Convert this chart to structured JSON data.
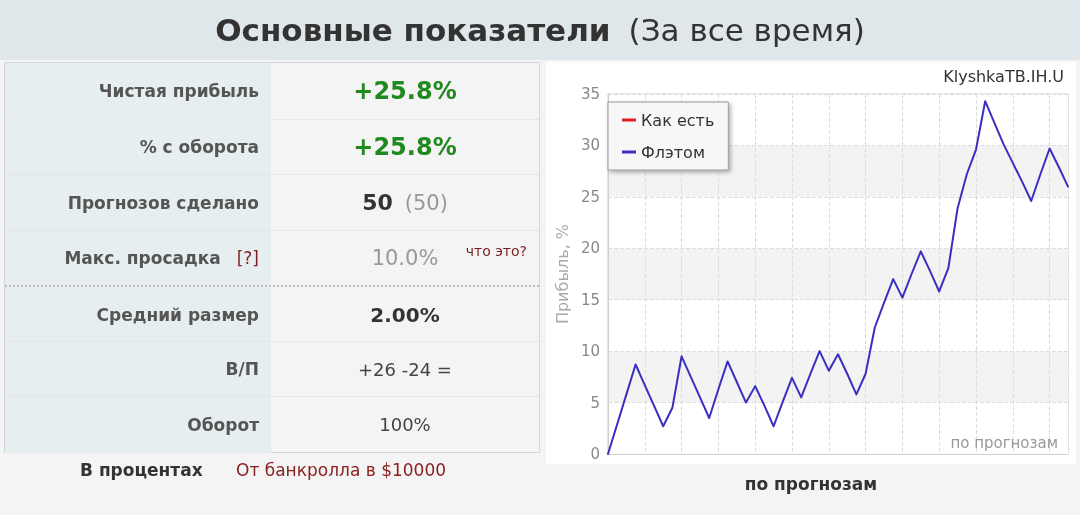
{
  "chart_data": [
    {
      "type": "other",
      "title": "Основные показатели",
      "subtitle": "(За все время)",
      "annotations": [
        "Чистая прибыль",
        "+25.8%",
        "% с оборота",
        "+25.8%",
        "Прогнозов сделано",
        "50",
        "Макс. просадка",
        "10.0%",
        "Средний размер",
        "2.00%",
        "В/П",
        "+26 -24 =",
        "Оборот",
        "100%",
        "(50)",
        "[?]",
        "что это?",
        "В процентах",
        "От банкролла в $10000"
      ]
    },
    {
      "type": "line",
      "xlabel": "по прогнозам",
      "ylabel": "Прибыль, %",
      "annotations": [
        "KlyshkaTB.IH.U",
        "по прогнозам"
      ],
      "categories": [
        null,
        null,
        null,
        null,
        null,
        null,
        null,
        null,
        null,
        null,
        null,
        null,
        null,
        null,
        null,
        null,
        null,
        null,
        null,
        null,
        null,
        null,
        null,
        null,
        null,
        null,
        null,
        null,
        null,
        null,
        null,
        null,
        null,
        null,
        null,
        null,
        null,
        null,
        null,
        null,
        null,
        null,
        null,
        null,
        null,
        null,
        null,
        null,
        null,
        null,
        null
      ],
      "series": [
        {
          "name": "Как есть",
          "color": "#e02020",
          "values": [
            null,
            null,
            null,
            null,
            null,
            null,
            null,
            null,
            null,
            null,
            null,
            null,
            null,
            null,
            null,
            null,
            null,
            null,
            null,
            null,
            null,
            null,
            null,
            null,
            null,
            null,
            null,
            null,
            null,
            null,
            null,
            null,
            null,
            null,
            null,
            null,
            null,
            null,
            null,
            null,
            null,
            null,
            null,
            null,
            null,
            null,
            null,
            null,
            null,
            null,
            null
          ]
        },
        {
          "name": "Флэтом",
          "color": "#3a2fc0",
          "values": [
            0,
            2.9,
            5.8,
            8.7,
            6.7,
            4.7,
            2.7,
            4.5,
            9.5,
            7.5,
            5.5,
            3.5,
            6.3,
            9.0,
            7.0,
            5.0,
            6.6,
            4.7,
            2.7,
            5.1,
            7.4,
            5.5,
            7.8,
            10.0,
            8.1,
            9.7,
            7.8,
            5.8,
            7.8,
            12.3,
            14.7,
            17.0,
            15.2,
            17.5,
            19.7,
            17.8,
            15.8,
            18.1,
            23.9,
            27.2,
            29.6,
            34.3,
            32.2,
            30.1,
            28.3,
            26.5,
            24.6,
            27.2,
            29.7,
            27.9,
            26.0
          ]
        }
      ],
      "ylim": [
        0,
        35
      ],
      "yticks": [
        0,
        5,
        10,
        15,
        20,
        25,
        30,
        35
      ],
      "tick_labels": "y",
      "grid": true,
      "legend": "top left",
      "marker": "none",
      "line_style": "solid"
    }
  ]
}
